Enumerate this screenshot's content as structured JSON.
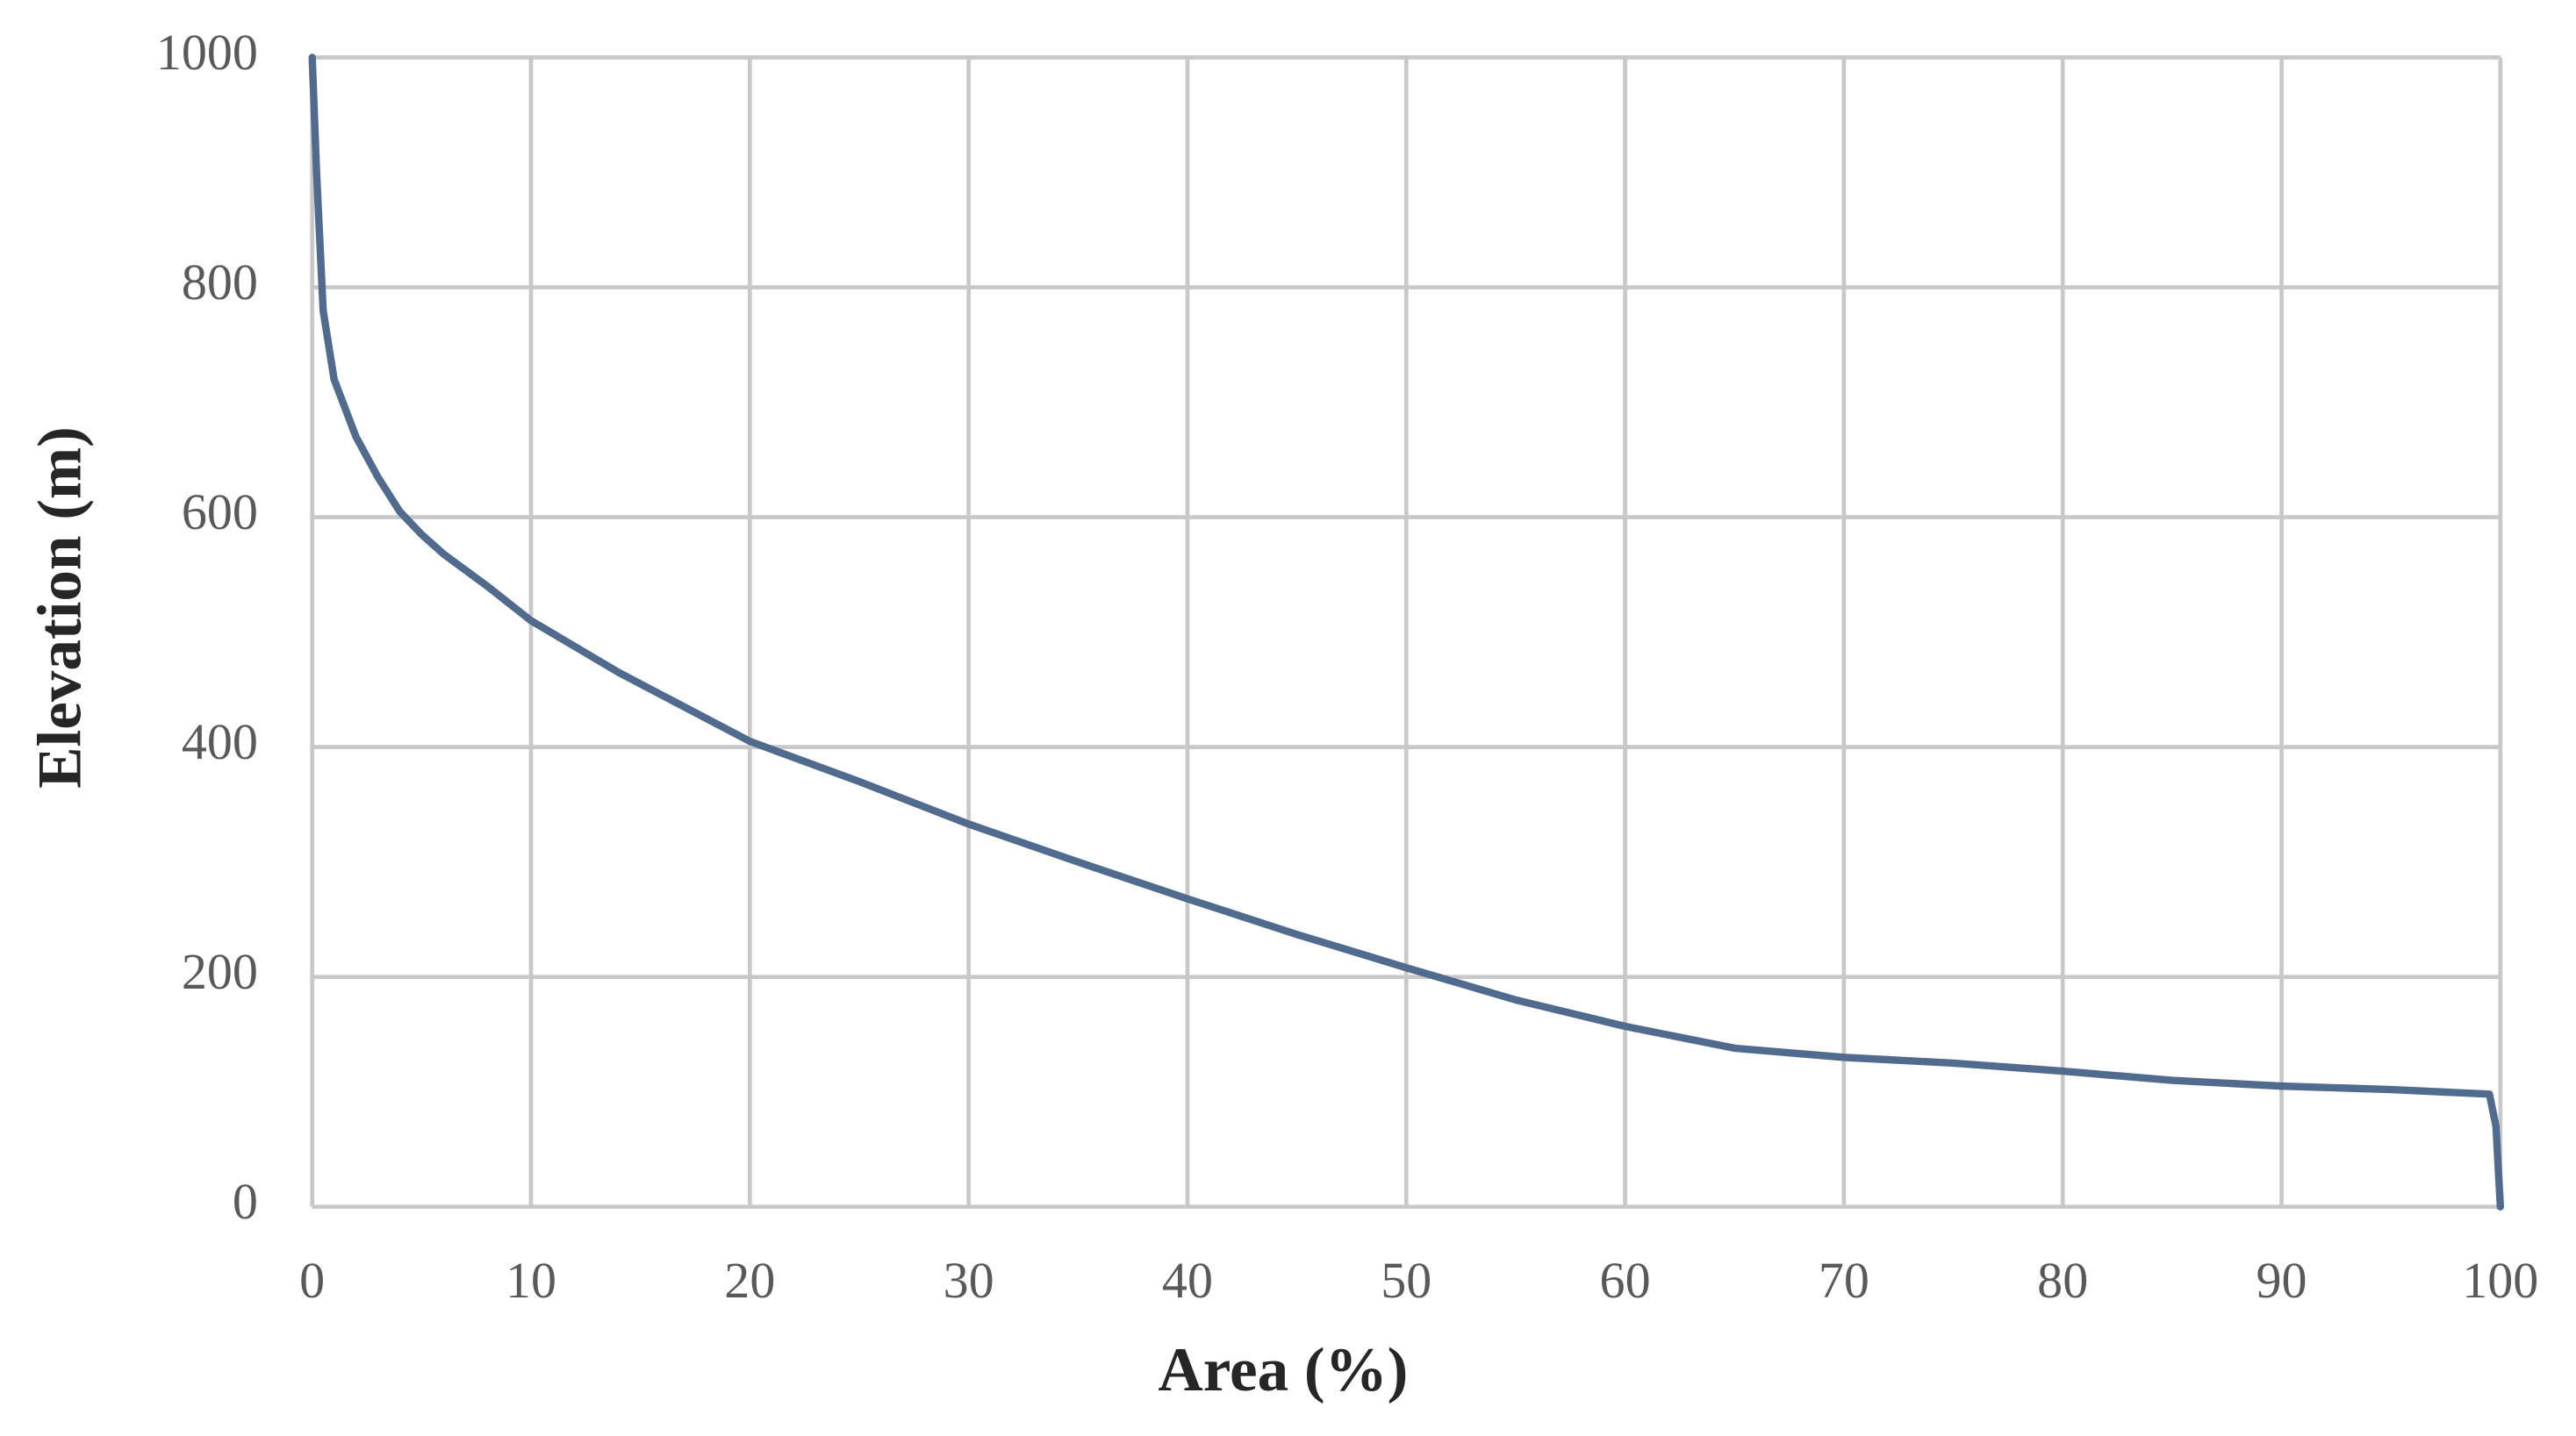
{
  "chart_data": {
    "type": "line",
    "x_label": "Area (%)",
    "y_label": "Elevation (m)",
    "x": [
      0,
      0.2,
      0.5,
      1,
      2,
      3,
      4,
      5,
      6,
      8,
      10,
      14,
      20,
      25,
      30,
      35,
      40,
      45,
      50,
      55,
      60,
      65,
      70,
      75,
      80,
      85,
      90,
      95,
      99.5,
      99.8,
      100
    ],
    "series": [
      {
        "name": "Elevation",
        "color": "#506b8e",
        "values": [
          1000,
          900,
          780,
          720,
          670,
          635,
          605,
          585,
          568,
          540,
          510,
          465,
          405,
          370,
          333,
          300,
          268,
          237,
          208,
          180,
          157,
          138,
          130,
          125,
          118,
          110,
          105,
          102,
          98,
          70,
          0
        ]
      }
    ],
    "xlim": [
      0,
      100
    ],
    "xticks": [
      0,
      10,
      20,
      30,
      40,
      50,
      60,
      70,
      80,
      90,
      100
    ],
    "ylim": [
      0,
      1000
    ],
    "yticks": [
      0,
      200,
      400,
      600,
      800,
      1000
    ],
    "grid": true
  }
}
